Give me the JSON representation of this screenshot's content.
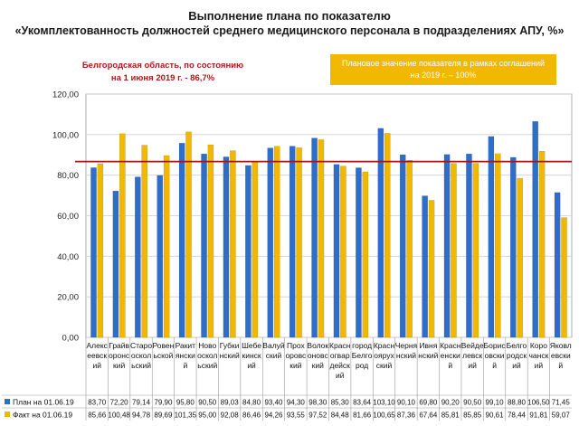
{
  "header": {
    "title_line1": "Выполнение плана по показателю",
    "title_line2": "«Укомплектованность должностей среднего медицинского персонала в подразделениях АПУ, %»"
  },
  "notes": {
    "region_line1": "Белгородская область, по состоянию",
    "region_line2": "на 1 июня 2019 г. - 86,7%",
    "plan_line1": "Плановое значение показателя в рамках соглашений",
    "plan_line2": "на 2019 г. – 100%"
  },
  "colors": {
    "plan": "#2e6ec9",
    "fact": "#f2b800",
    "reference": "#a01818"
  },
  "chart_data": {
    "type": "bar",
    "ylim": [
      0,
      120
    ],
    "yticks": [
      "0,00",
      "20,00",
      "40,00",
      "60,00",
      "80,00",
      "100,00",
      "120,00"
    ],
    "reference_line": 86.7,
    "grid": true,
    "categories": [
      [
        "Алекс",
        "еевск",
        "ий"
      ],
      [
        "Грайв",
        "оронс",
        "кий"
      ],
      [
        "Старо",
        "оскол",
        "ьский"
      ],
      [
        "Ровен",
        "ьской"
      ],
      [
        "Ракит",
        "янски",
        "й"
      ],
      [
        "Ново",
        "оскол",
        "ьский"
      ],
      [
        "Губки",
        "нский"
      ],
      [
        "Шебе",
        "кинск",
        "ий"
      ],
      [
        "Валуй",
        "ский"
      ],
      [
        "Прох",
        "оровс",
        "кий"
      ],
      [
        "Волок",
        "оновс",
        "кий"
      ],
      [
        "Красн",
        "огвар",
        "дейск",
        "ий"
      ],
      [
        "город",
        "Белго",
        "род"
      ],
      [
        "Красн",
        "оярух",
        "ский"
      ],
      [
        "Черня",
        "нский"
      ],
      [
        "Ивня",
        "нский"
      ],
      [
        "Красн",
        "енски",
        "й"
      ],
      [
        "Вейде",
        "левск",
        "ий"
      ],
      [
        "Борис",
        "овски",
        "й"
      ],
      [
        "Белго",
        "родск",
        "ий"
      ],
      [
        "Коро",
        "чанск",
        "ий"
      ],
      [
        "Яковл",
        "евски",
        "й"
      ]
    ],
    "series": [
      {
        "name": "План на 01.06.19",
        "values": [
          83.7,
          72.2,
          79.14,
          79.9,
          95.8,
          90.5,
          89.03,
          84.8,
          93.4,
          94.3,
          98.3,
          85.3,
          83.64,
          103.1,
          90.1,
          69.8,
          90.2,
          90.5,
          99.1,
          88.8,
          106.5,
          71.45
        ],
        "labels": [
          "83,70",
          "72,20",
          "79,14",
          "79,90",
          "95,80",
          "90,50",
          "89,03",
          "84,80",
          "93,40",
          "94,30",
          "98,30",
          "85,30",
          "83,64",
          "103,10",
          "90,10",
          "69,80",
          "90,20",
          "90,50",
          "99,10",
          "88,80",
          "106,50",
          "71,45"
        ]
      },
      {
        "name": "Факт на 01.06.19",
        "values": [
          85.66,
          100.48,
          94.78,
          89.69,
          101.35,
          95.0,
          92.08,
          86.46,
          94.26,
          93.55,
          97.52,
          84.48,
          81.66,
          100.65,
          87.36,
          67.64,
          85.81,
          85.85,
          90.61,
          78.44,
          91.81,
          59.07
        ],
        "labels": [
          "85,66",
          "100,48",
          "94,78",
          "89,69",
          "101,35",
          "95,00",
          "92,08",
          "86,46",
          "94,26",
          "93,55",
          "97,52",
          "84,48",
          "81,66",
          "100,65",
          "87,36",
          "67,64",
          "85,81",
          "85,85",
          "90,61",
          "78,44",
          "91,81",
          "59,07"
        ]
      }
    ]
  }
}
